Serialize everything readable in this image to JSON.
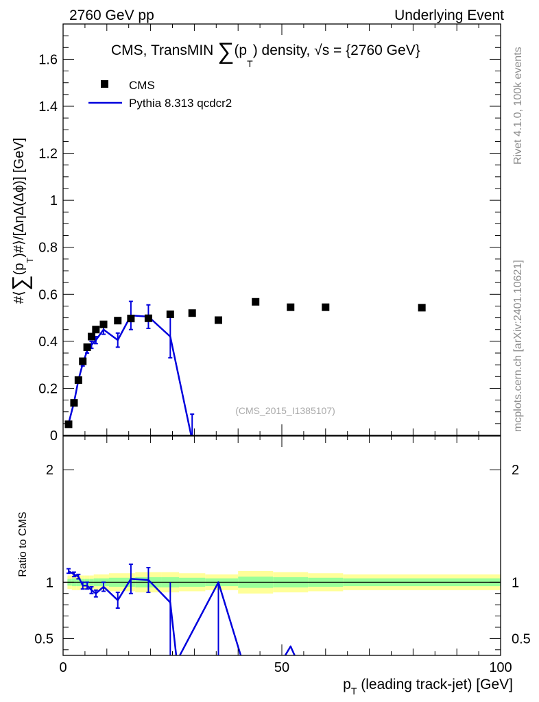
{
  "header": {
    "left_label": "2760 GeV pp",
    "right_label": "Underlying Event"
  },
  "side_labels": {
    "rivet": "Rivet 4.1.0,  100k events",
    "mcplots": "mcplots.cern.ch [arXiv:2401.10621]"
  },
  "watermark": "(CMS_2015_I1385107)",
  "colors": {
    "data": "#000000",
    "mc": "#0000dd",
    "band_outer": "#ffff99",
    "band_inner": "#99ff99"
  },
  "chart_data": [
    {
      "type": "scatter",
      "panel": "main",
      "title_parts": {
        "lead": "CMS, TransMIN ",
        "sum": "∑",
        "pt": "(p",
        "sub": "T",
        "tail": ") density, √s = {2760 GeV}"
      },
      "ylabel_parts": {
        "lead": "#⟨",
        "sum": "∑",
        "pt": "(p",
        "sub": "T",
        "tail": ")#⟩/[ΔηΔ(Δϕ)] [GeV]"
      },
      "xlim": [
        0,
        100
      ],
      "ylim": [
        0,
        1.75
      ],
      "yticks": [
        0,
        0.2,
        0.4,
        0.6,
        0.8,
        1,
        1.2,
        1.4,
        1.6
      ],
      "ytick_labels": [
        "0",
        "0.2",
        "0.4",
        "0.6",
        "0.8",
        "1",
        "1.2",
        "1.4",
        "1.6"
      ],
      "legend": [
        "CMS",
        "Pythia 8.313 qcdcr2"
      ],
      "series": [
        {
          "name": "CMS",
          "style": "markers",
          "x": [
            1.25,
            2.5,
            3.5,
            4.5,
            5.5,
            6.5,
            7.5,
            9.25,
            12.5,
            15.5,
            19.5,
            24.5,
            29.5,
            35.5,
            44.0,
            52.0,
            60.0,
            82.0
          ],
          "y": [
            0.047,
            0.138,
            0.235,
            0.315,
            0.375,
            0.42,
            0.45,
            0.472,
            0.488,
            0.497,
            0.498,
            0.515,
            0.52,
            0.49,
            0.568,
            0.545,
            0.545,
            0.543
          ]
        },
        {
          "name": "Pythia 8.313 qcdcr2",
          "style": "line",
          "x": [
            1.25,
            2.5,
            3.5,
            4.5,
            5.5,
            6.5,
            7.5,
            9.25,
            12.5,
            15.5,
            19.5,
            24.5,
            29.5
          ],
          "y": [
            0.05,
            0.14,
            0.235,
            0.305,
            0.36,
            0.385,
            0.405,
            0.45,
            0.405,
            0.51,
            0.505,
            0.42,
            -0.02
          ],
          "err": [
            0.005,
            0.01,
            0.01,
            0.01,
            0.01,
            0.015,
            0.015,
            0.02,
            0.03,
            0.06,
            0.05,
            0.09,
            0.11
          ]
        }
      ]
    },
    {
      "type": "line",
      "panel": "ratio",
      "ylabel": "Ratio to CMS",
      "xlabel_parts": {
        "lead": "p",
        "sub": "T",
        "tail": " (leading track-jet) [GeV]"
      },
      "xlim": [
        0,
        100
      ],
      "ylim": [
        0.35,
        2.3
      ],
      "xticks": [
        0,
        50,
        100
      ],
      "xtick_labels": [
        "0",
        "50",
        "100"
      ],
      "yticks": [
        0.5,
        1,
        2
      ],
      "ytick_labels": [
        "0.5",
        "1",
        "2"
      ],
      "reference": 1,
      "band_edges": [
        1,
        2,
        3,
        4,
        5,
        6,
        7,
        8,
        10.5,
        14.5,
        16.5,
        22.5,
        26.5,
        32.5,
        40,
        48,
        56,
        64,
        100
      ],
      "band_outer_halfwidth": [
        0.06,
        0.07,
        0.07,
        0.06,
        0.06,
        0.06,
        0.07,
        0.07,
        0.08,
        0.08,
        0.09,
        0.09,
        0.08,
        0.07,
        0.1,
        0.09,
        0.08,
        0.07
      ],
      "band_inner_halfwidth": [
        0.03,
        0.035,
        0.035,
        0.03,
        0.03,
        0.03,
        0.035,
        0.035,
        0.04,
        0.04,
        0.045,
        0.045,
        0.04,
        0.035,
        0.05,
        0.045,
        0.04,
        0.035
      ],
      "series": [
        {
          "name": "Pythia 8.313 qcdcr2 / CMS",
          "x": [
            1.25,
            2.5,
            3.5,
            4.5,
            5.5,
            6.5,
            7.5,
            9.25,
            12.5,
            15.5,
            19.5,
            24.5,
            26.0,
            35.5,
            41.0,
            50.0,
            52.0,
            53.5
          ],
          "y": [
            1.1,
            1.07,
            1.05,
            0.97,
            0.97,
            0.93,
            0.9,
            0.96,
            0.84,
            1.03,
            1.02,
            0.82,
            0.3,
            1.0,
            0.3,
            0.3,
            0.43,
            0.3
          ],
          "err": [
            0.02,
            0.02,
            0.02,
            0.03,
            0.03,
            0.03,
            0.03,
            0.04,
            0.07,
            0.13,
            0.11,
            0.18,
            0,
            0.0,
            0,
            0,
            0,
            0
          ],
          "err_to_axis": [
            false,
            false,
            false,
            false,
            false,
            false,
            false,
            false,
            false,
            false,
            false,
            true,
            false,
            true,
            false,
            false,
            false,
            false
          ]
        }
      ]
    }
  ]
}
